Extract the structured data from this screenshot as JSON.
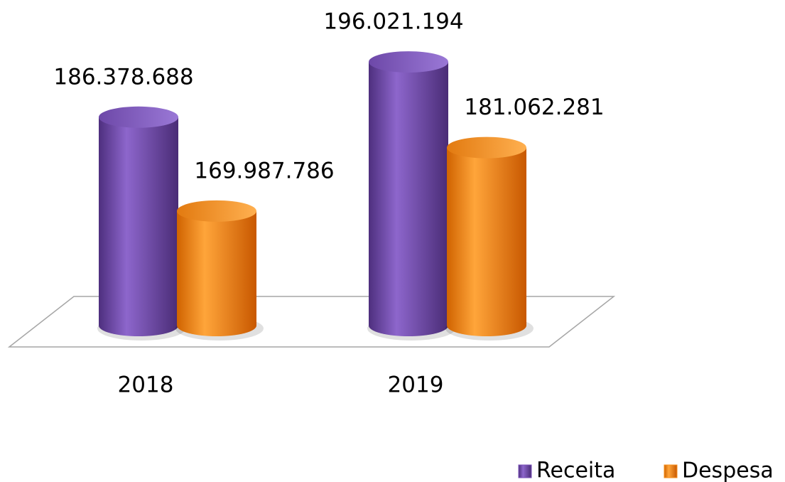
{
  "chart_data": {
    "type": "bar3d",
    "categories": [
      "2018",
      "2019"
    ],
    "series": [
      {
        "name": "Receita",
        "color": "#7b52b9",
        "values": [
          186378688,
          196021194
        ],
        "value_labels": [
          "186.378.688",
          "196.021.194"
        ]
      },
      {
        "name": "Despesa",
        "color": "#f7901e",
        "values": [
          169987786,
          181062281
        ],
        "value_labels": [
          "169.987.786",
          "181.062.281"
        ]
      }
    ],
    "ylim": [
      150000000,
      200000000
    ],
    "grid": false,
    "legend": "bottom-right"
  }
}
